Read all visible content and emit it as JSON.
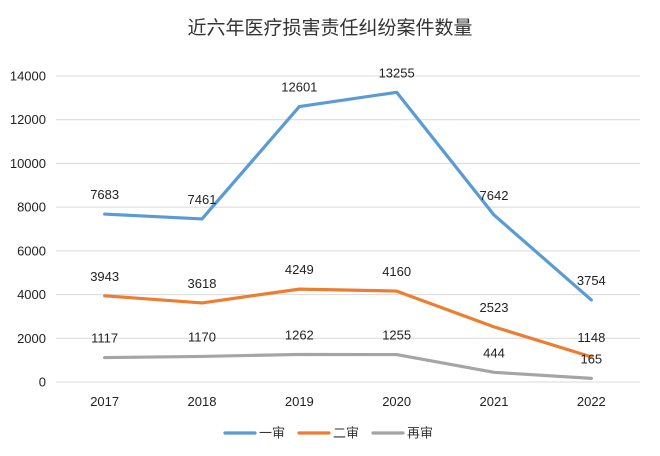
{
  "chart_data": {
    "type": "line",
    "title": "近六年医疗损害责任纠纷案件数量",
    "categories": [
      "2017",
      "2018",
      "2019",
      "2020",
      "2021",
      "2022"
    ],
    "ylim": [
      0,
      14000
    ],
    "yticks": [
      0,
      2000,
      4000,
      6000,
      8000,
      10000,
      12000,
      14000
    ],
    "grid": true,
    "legend_position": "bottom",
    "series": [
      {
        "name": "一审",
        "color": "#5b9bd5",
        "values": [
          7683,
          7461,
          12601,
          13255,
          7642,
          3754
        ]
      },
      {
        "name": "二审",
        "color": "#ed7d31",
        "values": [
          3943,
          3618,
          4249,
          4160,
          2523,
          1148
        ]
      },
      {
        "name": "再审",
        "color": "#a5a5a5",
        "values": [
          1117,
          1170,
          1262,
          1255,
          444,
          165
        ]
      }
    ]
  }
}
